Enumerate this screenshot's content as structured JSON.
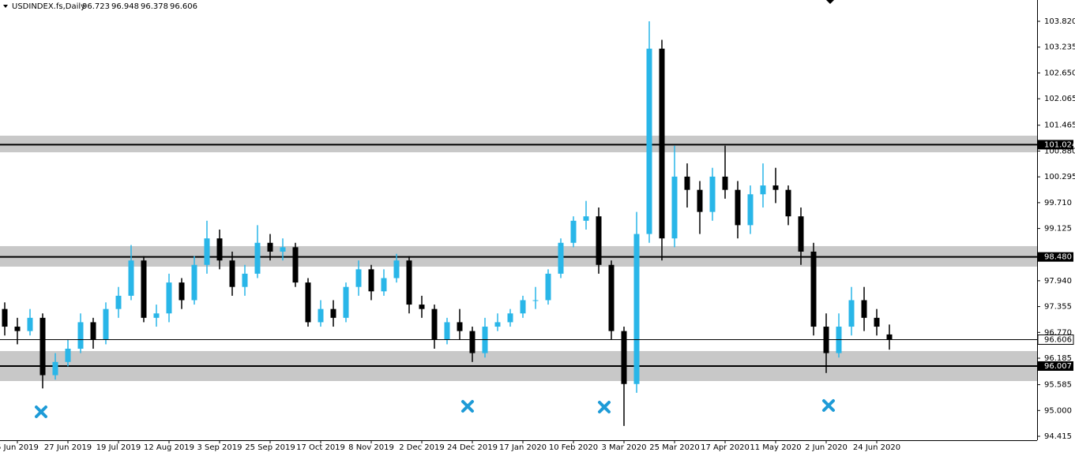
{
  "chart_data": {
    "type": "candlestick",
    "title": "USDINDEX.fs,Daily",
    "categories": [
      null,
      "5 Jun 2019",
      null,
      null,
      null,
      "27 Jun 2019",
      null,
      null,
      null,
      "19 Jul 2019",
      null,
      null,
      null,
      "12 Aug 2019",
      null,
      null,
      null,
      "3 Sep 2019",
      null,
      null,
      null,
      "25 Sep 2019",
      null,
      null,
      null,
      "17 Oct 2019",
      null,
      null,
      null,
      "8 Nov 2019",
      null,
      null,
      null,
      "2 Dec 2019",
      null,
      null,
      null,
      "24 Dec 2019",
      null,
      null,
      null,
      "17 Jan 2020",
      null,
      null,
      null,
      "10 Feb 2020",
      null,
      null,
      null,
      "3 Mar 2020",
      null,
      null,
      null,
      "25 Mar 2020",
      null,
      null,
      null,
      "17 Apr 2020",
      null,
      null,
      null,
      "11 May 2020",
      null,
      null,
      null,
      "2 Jun 2020",
      null,
      null,
      null,
      "24 Jun 2020",
      null
    ],
    "open": [
      97.3,
      96.9,
      96.8,
      97.1,
      95.8,
      96.1,
      96.4,
      97.0,
      96.6,
      97.3,
      97.6,
      98.4,
      97.1,
      97.2,
      97.9,
      97.5,
      98.3,
      98.9,
      98.4,
      97.8,
      98.1,
      98.8,
      98.6,
      98.7,
      97.9,
      97.0,
      97.3,
      97.1,
      97.8,
      98.2,
      97.7,
      98.0,
      98.4,
      97.4,
      97.3,
      96.6,
      97.0,
      96.8,
      96.3,
      96.9,
      97.0,
      97.2,
      97.5,
      97.5,
      98.1,
      98.8,
      99.3,
      99.4,
      98.3,
      96.8,
      95.6,
      99.0,
      103.2,
      98.9,
      100.3,
      100.0,
      99.5,
      100.3,
      100.0,
      99.2,
      99.9,
      100.1,
      100.0,
      99.4,
      98.6,
      96.9,
      96.3,
      96.9,
      97.5,
      97.1,
      96.723
    ],
    "high": [
      97.45,
      97.1,
      97.3,
      97.2,
      96.3,
      96.6,
      97.2,
      97.1,
      97.45,
      97.8,
      98.75,
      98.5,
      97.4,
      98.1,
      98.0,
      98.5,
      99.3,
      99.1,
      98.6,
      98.3,
      99.2,
      99.0,
      98.9,
      98.8,
      98.0,
      97.5,
      97.5,
      97.9,
      98.4,
      98.3,
      98.2,
      98.55,
      98.5,
      97.6,
      97.4,
      97.1,
      97.3,
      96.9,
      97.1,
      97.2,
      97.3,
      97.6,
      97.8,
      98.2,
      98.9,
      99.4,
      99.75,
      99.6,
      98.4,
      96.9,
      99.5,
      103.82,
      103.4,
      101.0,
      100.6,
      100.2,
      100.5,
      101.0,
      100.2,
      100.1,
      100.6,
      100.5,
      100.1,
      99.6,
      98.8,
      97.2,
      97.2,
      97.8,
      97.8,
      97.3,
      96.948
    ],
    "low": [
      96.7,
      96.5,
      96.7,
      95.5,
      95.7,
      96.0,
      96.3,
      96.4,
      96.5,
      97.1,
      97.5,
      97.0,
      96.9,
      97.0,
      97.3,
      97.4,
      98.1,
      98.2,
      97.6,
      97.6,
      98.0,
      98.4,
      98.4,
      97.8,
      96.9,
      96.9,
      96.9,
      97.0,
      97.6,
      97.5,
      97.6,
      97.9,
      97.2,
      97.1,
      96.4,
      96.5,
      96.6,
      96.1,
      96.2,
      96.8,
      96.9,
      97.1,
      97.3,
      97.4,
      98.0,
      98.7,
      99.1,
      98.1,
      96.6,
      94.65,
      95.4,
      98.8,
      98.4,
      98.7,
      99.6,
      99.0,
      99.3,
      99.8,
      98.9,
      99.0,
      99.6,
      99.7,
      99.2,
      98.3,
      96.7,
      95.85,
      96.2,
      96.7,
      96.8,
      96.7,
      96.378
    ],
    "close": [
      96.9,
      96.8,
      97.1,
      95.8,
      96.1,
      96.4,
      97.0,
      96.6,
      97.3,
      97.6,
      98.4,
      97.1,
      97.2,
      97.9,
      97.5,
      98.3,
      98.9,
      98.4,
      97.8,
      98.1,
      98.8,
      98.6,
      98.7,
      97.9,
      97.0,
      97.3,
      97.1,
      97.8,
      98.2,
      97.7,
      98.0,
      98.4,
      97.4,
      97.3,
      96.6,
      97.0,
      96.8,
      96.3,
      96.9,
      97.0,
      97.2,
      97.5,
      97.5,
      98.1,
      98.8,
      99.3,
      99.4,
      98.3,
      96.8,
      95.6,
      99.0,
      103.2,
      98.9,
      100.3,
      100.0,
      99.5,
      100.3,
      100.0,
      99.2,
      99.9,
      100.1,
      100.0,
      99.4,
      98.6,
      96.9,
      96.3,
      96.9,
      97.5,
      97.1,
      96.9,
      96.606
    ],
    "up_color": "#29b6e8",
    "down_color": "#000000",
    "levels": [
      {
        "value": 101.024,
        "zone": [
          100.852,
          101.228
        ]
      },
      {
        "value": 98.48,
        "label": "98.480",
        "zone": [
          98.26,
          98.725
        ]
      },
      {
        "value": 96.007,
        "zone": [
          95.667,
          96.347
        ]
      }
    ],
    "zone_color": "#c8c8c8",
    "ylim": [
      94.326,
      104.303
    ],
    "yticks": [
      {
        "value": 103.82,
        "label": "103.820"
      },
      103.235,
      {
        "value": 102.65,
        "label": "102.650"
      },
      102.065,
      101.465,
      {
        "value": 100.88,
        "label": "100.880"
      },
      100.295,
      {
        "value": 99.71,
        "label": "99.710"
      },
      99.125,
      {
        "value": 97.94,
        "label": "97.940"
      },
      97.355,
      {
        "value": 96.77,
        "label": "96.770"
      },
      96.185,
      95.585,
      {
        "value": 95.0,
        "label": "95.000"
      },
      94.415
    ]
  }
}
